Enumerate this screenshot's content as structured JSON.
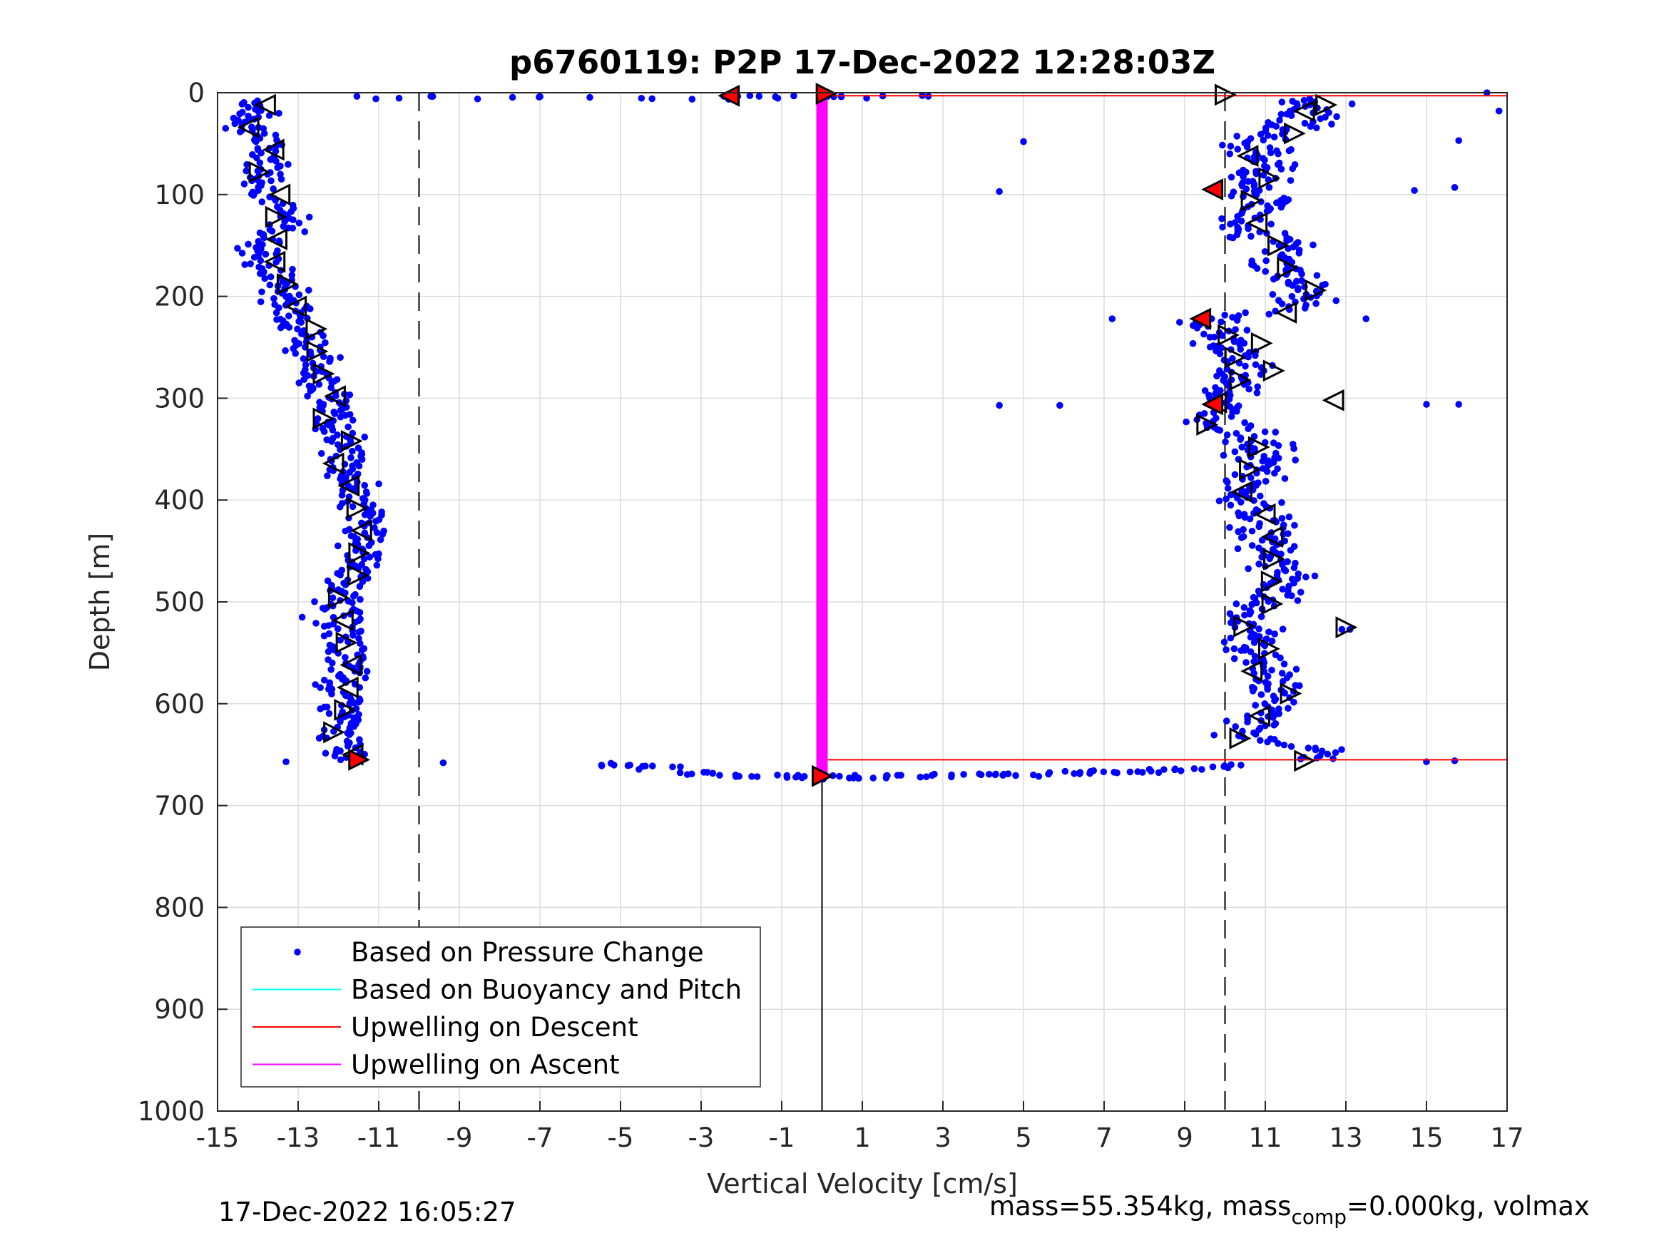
{
  "chart_data": {
    "type": "scatter",
    "title": "p6760119: P2P 17-Dec-2022 12:28:03Z",
    "xlabel": "Vertical Velocity [cm/s]",
    "ylabel": "Depth [m]",
    "xlim": [
      -15,
      17
    ],
    "ylim": [
      0,
      1000
    ],
    "y_reversed": true,
    "grid": true,
    "xticks": [
      "-15",
      "-13",
      "-11",
      "-9",
      "-7",
      "-5",
      "-3",
      "-1",
      "1",
      "3",
      "5",
      "7",
      "9",
      "11",
      "13",
      "15",
      "17"
    ],
    "yticks": [
      "0",
      "100",
      "200",
      "300",
      "400",
      "500",
      "600",
      "700",
      "800",
      "900",
      "1000"
    ],
    "legend_position": "bottom-left",
    "legend": [
      {
        "label": "Based on Pressure Change",
        "color": "#0000ff",
        "style": "dot"
      },
      {
        "label": "Based on Buoyancy and Pitch",
        "color": "#00ffff",
        "style": "line"
      },
      {
        "label": "Upwelling on Descent",
        "color": "#ff0000",
        "style": "line"
      },
      {
        "label": "Upwelling on Ascent",
        "color": "#ff00ff",
        "style": "line"
      }
    ],
    "reference_lines": {
      "vertical_dashed_x": [
        -10,
        10
      ],
      "vertical_solid_x": 0
    },
    "series": [
      {
        "name": "Based on Pressure Change",
        "color": "#0000ff",
        "descent_profile": [
          [
            -14,
            10
          ],
          [
            -14.2,
            30
          ],
          [
            -13.8,
            50
          ],
          [
            -13.6,
            70
          ],
          [
            -13.9,
            90
          ],
          [
            -13.5,
            110
          ],
          [
            -13.3,
            130
          ],
          [
            -13.9,
            150
          ],
          [
            -13.8,
            170
          ],
          [
            -13.3,
            190
          ],
          [
            -13.2,
            210
          ],
          [
            -12.8,
            235
          ],
          [
            -12.6,
            260
          ],
          [
            -12.3,
            285
          ],
          [
            -12.2,
            310
          ],
          [
            -11.9,
            340
          ],
          [
            -11.8,
            370
          ],
          [
            -11.5,
            400
          ],
          [
            -11.3,
            430
          ],
          [
            -11.4,
            460
          ],
          [
            -11.9,
            490
          ],
          [
            -11.9,
            520
          ],
          [
            -11.8,
            550
          ],
          [
            -11.9,
            580
          ],
          [
            -11.9,
            610
          ],
          [
            -12.0,
            630
          ],
          [
            -11.6,
            655
          ]
        ],
        "ascent_profile": [
          [
            12.3,
            10
          ],
          [
            11.8,
            30
          ],
          [
            10.6,
            50
          ],
          [
            11.2,
            70
          ],
          [
            10.5,
            95
          ],
          [
            11.3,
            110
          ],
          [
            10.2,
            130
          ],
          [
            11.5,
            150
          ],
          [
            11.2,
            170
          ],
          [
            12.0,
            190
          ],
          [
            11.8,
            210
          ],
          [
            9.6,
            225
          ],
          [
            10.2,
            250
          ],
          [
            10.4,
            270
          ],
          [
            10.1,
            300
          ],
          [
            9.8,
            320
          ],
          [
            10.8,
            340
          ],
          [
            10.9,
            370
          ],
          [
            10.2,
            390
          ],
          [
            10.8,
            410
          ],
          [
            11.1,
            440
          ],
          [
            11.5,
            470
          ],
          [
            11.4,
            490
          ],
          [
            10.6,
            510
          ],
          [
            10.6,
            530
          ],
          [
            10.8,
            550
          ],
          [
            11.1,
            570
          ],
          [
            11.3,
            590
          ],
          [
            11.1,
            610
          ],
          [
            10.5,
            630
          ],
          [
            12.4,
            645
          ],
          [
            12.3,
            655
          ]
        ],
        "surface_line": [
          [
            -11,
            5
          ],
          [
            -9,
            5
          ],
          [
            -7,
            5
          ],
          [
            -5,
            5
          ],
          [
            -3,
            5
          ],
          [
            -2,
            4
          ],
          [
            -1,
            5
          ],
          [
            0,
            3
          ],
          [
            0.8,
            4
          ],
          [
            2,
            3
          ]
        ],
        "bottom_line": [
          [
            -5,
            660
          ],
          [
            -4,
            663
          ],
          [
            -3,
            668
          ],
          [
            -2,
            670
          ],
          [
            -1,
            671
          ],
          [
            0,
            672
          ],
          [
            1,
            672
          ],
          [
            2,
            672
          ],
          [
            3,
            671
          ],
          [
            4,
            670
          ],
          [
            5,
            670
          ],
          [
            6,
            668
          ],
          [
            7,
            667
          ],
          [
            8,
            666
          ],
          [
            9,
            664
          ],
          [
            10,
            661
          ]
        ]
      },
      {
        "name": "Upwelling on Descent",
        "color": "#ff0000",
        "segments": [
          [
            [
              0,
              3
            ],
            [
              17,
              3
            ]
          ],
          [
            [
              0,
              655
            ],
            [
              17,
              655
            ]
          ]
        ]
      },
      {
        "name": "Upwelling on Ascent",
        "color": "#ff00ff",
        "segments": [
          [
            [
              0,
              3
            ],
            [
              0,
              672
            ]
          ]
        ]
      }
    ]
  },
  "footer": {
    "timestamp": "17-Dec-2022 16:05:27",
    "mass_text_a": "mass=55.354kg, mass",
    "mass_sub": "comp",
    "mass_text_b": "=0.000kg, volmax"
  }
}
